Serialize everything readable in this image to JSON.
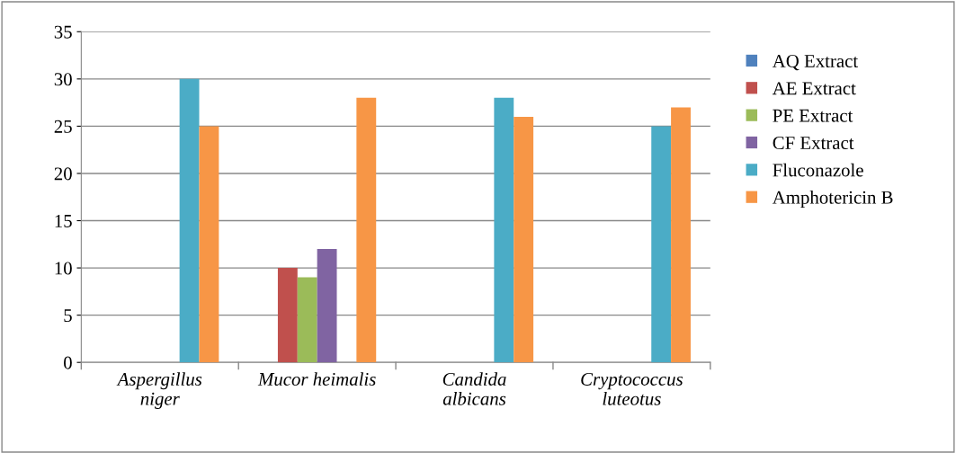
{
  "chart_data": {
    "type": "bar",
    "categories": [
      "Aspergillus\nniger",
      "Mucor heimalis",
      "Candida\nalbicans",
      "Cryptococcus\nluteotus"
    ],
    "series": [
      {
        "name": "AQ Extract",
        "color": "#4f81bd",
        "values": [
          0,
          0,
          0,
          0
        ]
      },
      {
        "name": "AE Extract",
        "color": "#c0504d",
        "values": [
          0,
          10,
          0,
          0
        ]
      },
      {
        "name": "PE Extract",
        "color": "#9bbb59",
        "values": [
          0,
          9,
          0,
          0
        ]
      },
      {
        "name": "CF Extract",
        "color": "#8064a2",
        "values": [
          0,
          12,
          0,
          0
        ]
      },
      {
        "name": "Fluconazole",
        "color": "#4bacc6",
        "values": [
          30,
          0,
          28,
          25
        ]
      },
      {
        "name": "Amphotericin B",
        "color": "#f79646",
        "values": [
          25,
          28,
          26,
          27
        ]
      }
    ],
    "ylim": [
      0,
      35
    ],
    "yticks": [
      0,
      5,
      10,
      15,
      20,
      25,
      30,
      35
    ],
    "grid": "y",
    "legend": "right"
  }
}
